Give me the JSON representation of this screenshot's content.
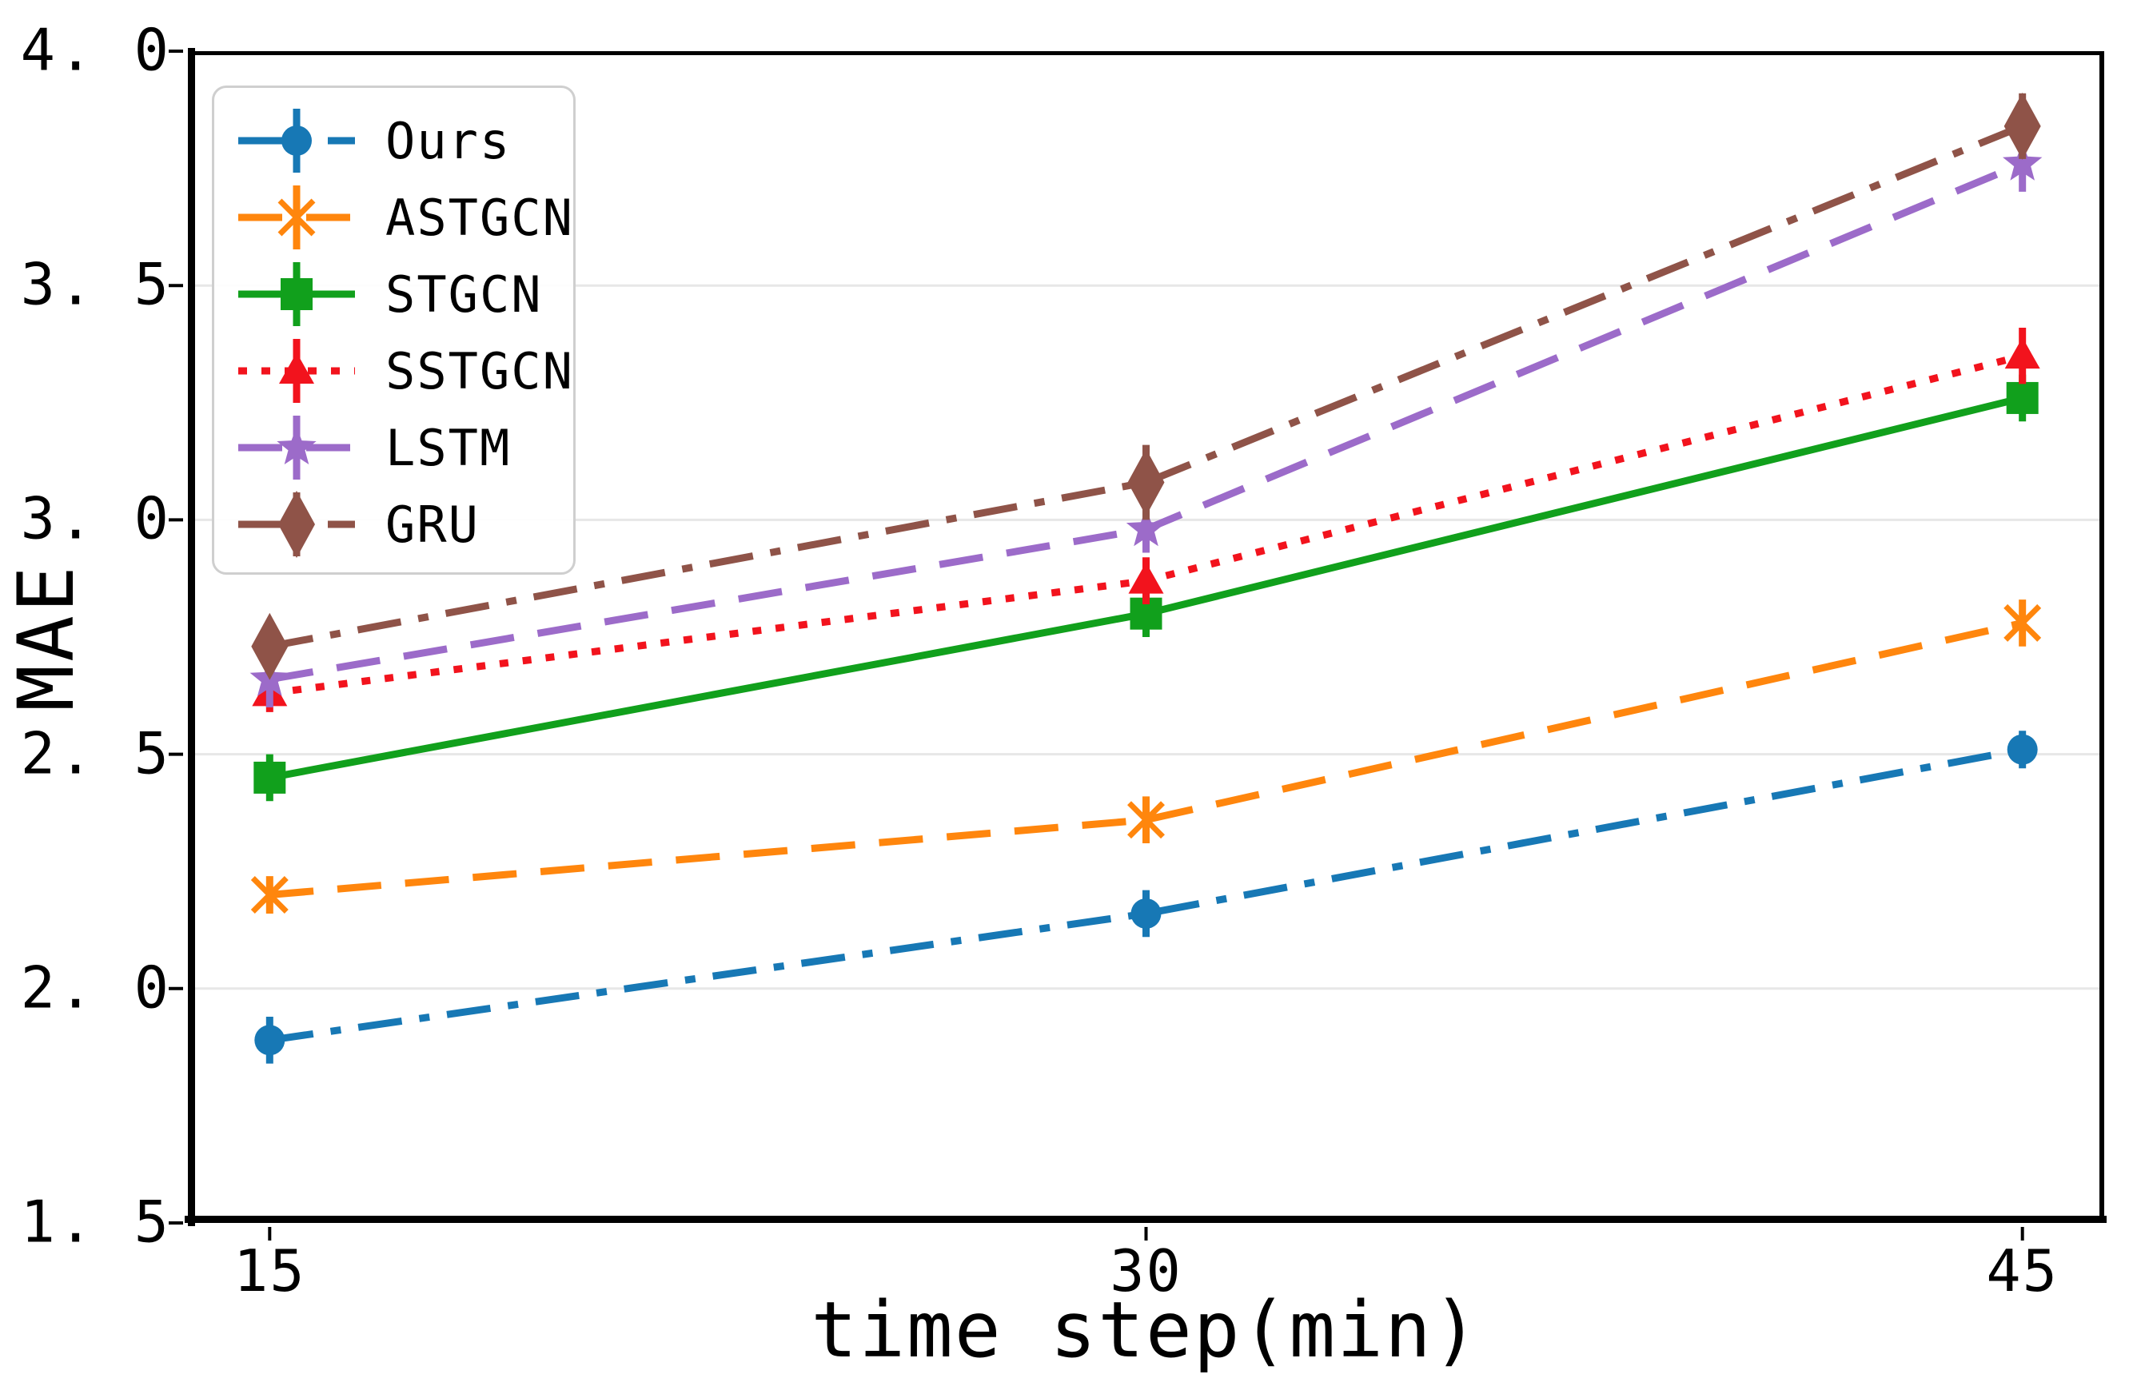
{
  "figure": {
    "background": "#ffffff",
    "spine_color": "#000000",
    "grid_color": "#e7e7e7",
    "text_color": "#000000",
    "legend_border_color": "#cfcfcf"
  },
  "chart_data": {
    "type": "line",
    "title": "",
    "xlabel": "time step(min)",
    "ylabel": "MAE",
    "x": [
      15,
      30,
      45
    ],
    "xtick_labels": [
      "15",
      "30",
      "45"
    ],
    "xlim": [
      13.6,
      46.4
    ],
    "ylim": [
      1.5,
      4.0
    ],
    "yticks": [
      1.5,
      2.0,
      2.5,
      3.0,
      3.5,
      4.0
    ],
    "ytick_labels": [
      "1. 5",
      "2. 0",
      "2. 5",
      "3. 0",
      "3. 5",
      "4. 0"
    ],
    "grid": true,
    "grid_yvalues": [
      2.0,
      2.5,
      3.0,
      3.5
    ],
    "legend_position": "upper left",
    "error_bars": true,
    "series": [
      {
        "name": "Ours",
        "color": "#1778b5",
        "linestyle": "dashdot",
        "marker": "circle",
        "values": [
          1.89,
          2.16,
          2.51
        ],
        "yerr": [
          0.05,
          0.05,
          0.04
        ]
      },
      {
        "name": "ASTGCN",
        "color": "#ff860d",
        "linestyle": "dashed",
        "marker": "x",
        "values": [
          2.2,
          2.36,
          2.78
        ],
        "yerr": [
          0.04,
          0.05,
          0.05
        ]
      },
      {
        "name": "STGCN",
        "color": "#11a01c",
        "linestyle": "solid",
        "marker": "square",
        "values": [
          2.45,
          2.8,
          3.26
        ],
        "yerr": [
          0.05,
          0.05,
          0.05
        ]
      },
      {
        "name": "SSTGCN",
        "color": "#f2131d",
        "linestyle": "dotted",
        "marker": "triangle",
        "values": [
          2.63,
          2.87,
          3.35
        ],
        "yerr": [
          0.04,
          0.05,
          0.06
        ]
      },
      {
        "name": "LSTM",
        "color": "#9c6bc9",
        "linestyle": "dashed",
        "marker": "star",
        "values": [
          2.66,
          2.98,
          3.76
        ],
        "yerr": [
          0.06,
          0.05,
          0.06
        ]
      },
      {
        "name": "GRU",
        "color": "#8f5348",
        "linestyle": "dashdot",
        "marker": "thin-diamond",
        "values": [
          2.73,
          3.08,
          3.84
        ],
        "yerr": [
          0.05,
          0.08,
          0.07
        ]
      }
    ]
  }
}
